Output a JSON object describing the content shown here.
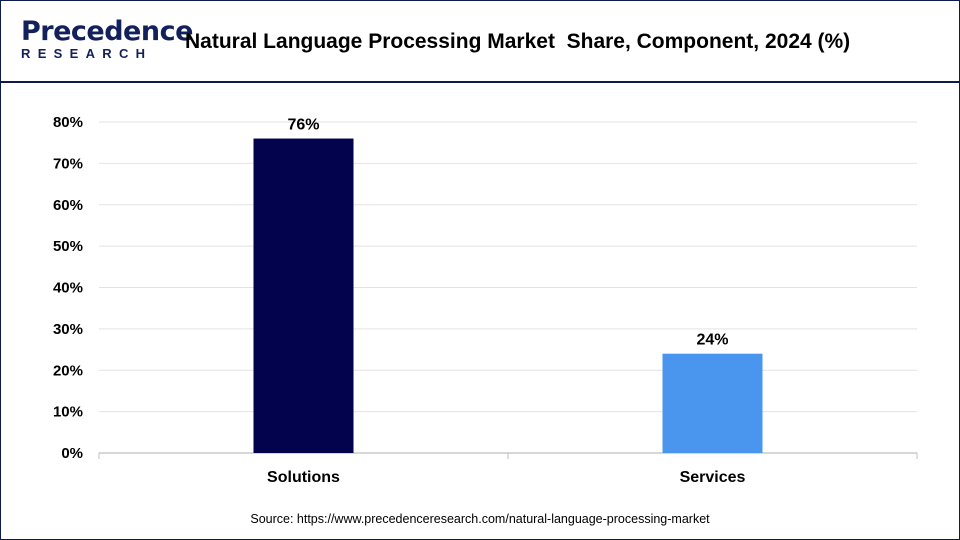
{
  "logo": {
    "brand_top": "Precedence",
    "brand_bottom": "RESEARCH"
  },
  "title": "Natural Language Processing Market  Share, Component, 2024 (%)",
  "source": "Source: https://www.precedenceresearch.com/natural-language-processing-market",
  "chart_data": {
    "type": "bar",
    "title": "Natural Language Processing Market  Share, Component, 2024 (%)",
    "categories": [
      "Solutions",
      "Services"
    ],
    "values": [
      76,
      24
    ],
    "value_labels": [
      "76%",
      "24%"
    ],
    "colors": [
      "#02024d",
      "#4a95ee"
    ],
    "ylim": [
      0,
      80
    ],
    "yticks": [
      0,
      10,
      20,
      30,
      40,
      50,
      60,
      70,
      80
    ],
    "ytick_labels": [
      "0%",
      "10%",
      "20%",
      "30%",
      "40%",
      "50%",
      "60%",
      "70%",
      "80%"
    ],
    "xlabel": "",
    "ylabel": "",
    "grid": true,
    "legend": "none"
  }
}
